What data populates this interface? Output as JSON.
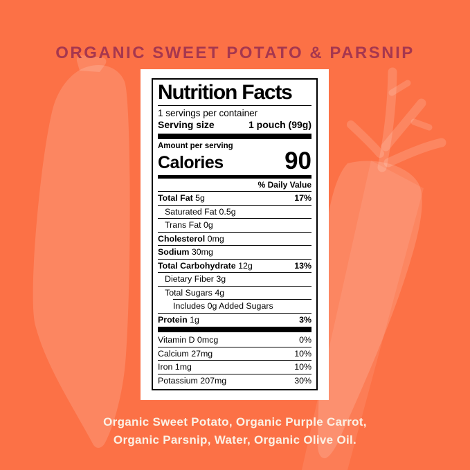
{
  "banner": {
    "title": "ORGANIC SWEET POTATO & PARSNIP"
  },
  "colors": {
    "background": "#FC7146",
    "silhouette": "rgba(255,255,255,0.15)",
    "banner_text": "#A6374F",
    "label_background": "#FFFFFF",
    "label_text": "#000000",
    "ingredients_text": "#FBF1E5"
  },
  "icons": {
    "left_decor": "carrot-silhouette",
    "right_decor": "carrot-with-greens-silhouette"
  },
  "nutrition_label": {
    "title": "Nutrition Facts",
    "servings_line": "1 servings per container",
    "serving_size_label": "Serving size",
    "serving_size_value": "1 pouch (99g)",
    "amount_per_serving_label": "Amount per serving",
    "calories_label": "Calories",
    "calories_value": "90",
    "daily_value_header": "% Daily Value",
    "rows": [
      {
        "label": "Total Fat",
        "amount": "5g",
        "dv": "17%",
        "bold": true,
        "dv_bold": true,
        "indent": 0
      },
      {
        "label": "Saturated Fat",
        "amount": "0.5g",
        "dv": "",
        "bold": false,
        "indent": 1
      },
      {
        "label": "Trans Fat",
        "amount": "0g",
        "dv": "",
        "bold": false,
        "indent": 1
      },
      {
        "label": "Cholesterol",
        "amount": "0mg",
        "dv": "",
        "bold": true,
        "indent": 0
      },
      {
        "label": "Sodium",
        "amount": "30mg",
        "dv": "",
        "bold": true,
        "indent": 0
      },
      {
        "label": "Total Carbohydrate",
        "amount": "12g",
        "dv": "13%",
        "bold": true,
        "dv_bold": true,
        "indent": 0
      },
      {
        "label": "Dietary Fiber",
        "amount": "3g",
        "dv": "",
        "bold": false,
        "indent": 1
      },
      {
        "label": "Total Sugars",
        "amount": "4g",
        "dv": "",
        "bold": false,
        "indent": 1
      },
      {
        "label": "Includes 0g Added Sugars",
        "amount": "",
        "dv": "",
        "bold": false,
        "indent": 2
      },
      {
        "label": "Protein",
        "amount": "1g",
        "dv": "3%",
        "bold": true,
        "dv_bold": true,
        "indent": 0
      }
    ],
    "micronutrients": [
      {
        "label": "Vitamin D",
        "amount": "0mcg",
        "dv": "0%"
      },
      {
        "label": "Calcium",
        "amount": "27mg",
        "dv": "10%"
      },
      {
        "label": "Iron",
        "amount": "1mg",
        "dv": "10%"
      },
      {
        "label": "Potassium",
        "amount": "207mg",
        "dv": "30%"
      }
    ]
  },
  "ingredients": {
    "line1": "Organic Sweet Potato, Organic Purple Carrot,",
    "line2": "Organic Parsnip, Water, Organic Olive Oil."
  }
}
